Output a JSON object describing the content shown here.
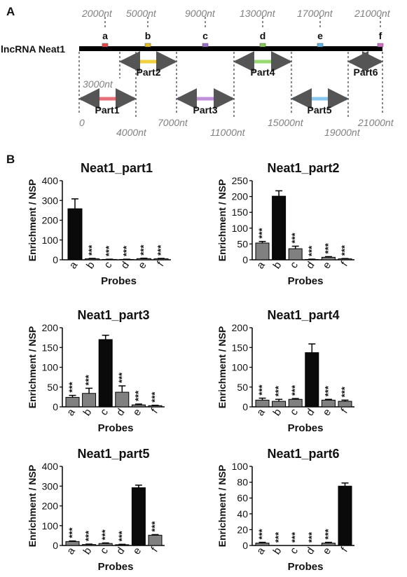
{
  "panels": {
    "a": "A",
    "b": "B"
  },
  "map": {
    "gene_label": "lncRNA Neat1",
    "probes": [
      {
        "letter": "a",
        "color": "#e84a4a"
      },
      {
        "letter": "b",
        "color": "#e8c020"
      },
      {
        "letter": "c",
        "color": "#a070c8"
      },
      {
        "letter": "d",
        "color": "#88cc55"
      },
      {
        "letter": "e",
        "color": "#60b8e8"
      },
      {
        "letter": "f",
        "color": "#d070c8"
      }
    ],
    "top_positions": [
      "2000nt",
      "5000nt",
      "9000nt",
      "13000nt",
      "17000nt",
      "21000nt"
    ],
    "parts": [
      {
        "name": "Part1",
        "color": "#e8707a"
      },
      {
        "name": "Part2",
        "color": "#f0d040"
      },
      {
        "name": "Part3",
        "color": "#c090d8"
      },
      {
        "name": "Part4",
        "color": "#98d870"
      },
      {
        "name": "Part5",
        "color": "#88c8f0"
      },
      {
        "name": "Part6",
        "color": "#e090d8"
      }
    ],
    "boundary_labels": {
      "p3000": "3000nt",
      "p0": "0",
      "p4000": "4000nt",
      "p7000": "7000nt",
      "p11000": "11000nt",
      "p15000": "15000nt",
      "p19000": "19000nt",
      "p21000": "21000nt"
    }
  },
  "chart_data": [
    {
      "type": "bar",
      "title": "Neat1_part1",
      "ylabel": "Enrichment / NSP",
      "xlabel": "Probes",
      "categories": [
        "a",
        "b",
        "c",
        "d",
        "e",
        "f"
      ],
      "ylim": [
        0,
        400
      ],
      "yticks": [
        0,
        100,
        200,
        300,
        400
      ],
      "values": [
        258,
        5,
        2,
        2,
        6,
        5
      ],
      "errors": [
        50,
        2,
        1,
        1,
        2,
        2
      ],
      "bar_colors": [
        "black",
        "gray",
        "gray",
        "gray",
        "gray",
        "gray"
      ],
      "annotations": [
        "",
        "***",
        "***",
        "***",
        "***",
        "***"
      ]
    },
    {
      "type": "bar",
      "title": "Neat1_part2",
      "ylabel": "Enrichment / NSP",
      "xlabel": "Probes",
      "categories": [
        "a",
        "b",
        "c",
        "d",
        "e",
        "f"
      ],
      "ylim": [
        0,
        250
      ],
      "yticks": [
        0,
        50,
        100,
        150,
        200,
        250
      ],
      "values": [
        53,
        201,
        35,
        1,
        8,
        3
      ],
      "errors": [
        5,
        17,
        8,
        1,
        2,
        1
      ],
      "bar_colors": [
        "gray",
        "black",
        "gray",
        "gray",
        "gray",
        "gray"
      ],
      "annotations": [
        "***",
        "",
        "***",
        "***",
        "***",
        "***"
      ]
    },
    {
      "type": "bar",
      "title": "Neat1_part3",
      "ylabel": "Enrichment / NSP",
      "xlabel": "Probes",
      "categories": [
        "a",
        "b",
        "c",
        "d",
        "e",
        "f"
      ],
      "ylim": [
        0,
        200
      ],
      "yticks": [
        0,
        50,
        100,
        150,
        200
      ],
      "values": [
        24,
        34,
        170,
        37,
        5,
        3
      ],
      "errors": [
        5,
        13,
        11,
        16,
        2,
        1
      ],
      "bar_colors": [
        "gray",
        "gray",
        "black",
        "gray",
        "gray",
        "gray"
      ],
      "annotations": [
        "***",
        "***",
        "",
        "***",
        "***",
        "***"
      ]
    },
    {
      "type": "bar",
      "title": "Neat1_part4",
      "ylabel": "Enrichment / NSP",
      "xlabel": "Probes",
      "categories": [
        "a",
        "b",
        "c",
        "d",
        "e",
        "f"
      ],
      "ylim": [
        0,
        200
      ],
      "yticks": [
        0,
        50,
        100,
        150,
        200
      ],
      "values": [
        17,
        14,
        19,
        137,
        17,
        14
      ],
      "errors": [
        5,
        5,
        2,
        22,
        2,
        3
      ],
      "bar_colors": [
        "gray",
        "gray",
        "gray",
        "black",
        "gray",
        "gray"
      ],
      "annotations": [
        "***",
        "***",
        "***",
        "",
        "***",
        "***"
      ]
    },
    {
      "type": "bar",
      "title": "Neat1_part5",
      "ylabel": "Enrichment / NSP",
      "xlabel": "Probes",
      "categories": [
        "a",
        "b",
        "c",
        "d",
        "e",
        "f"
      ],
      "ylim": [
        0,
        400
      ],
      "yticks": [
        0,
        100,
        200,
        300,
        400
      ],
      "values": [
        20,
        5,
        10,
        4,
        292,
        52
      ],
      "errors": [
        3,
        2,
        3,
        2,
        13,
        3
      ],
      "bar_colors": [
        "gray",
        "gray",
        "gray",
        "gray",
        "black",
        "gray"
      ],
      "annotations": [
        "***",
        "***",
        "***",
        "***",
        "",
        "***"
      ]
    },
    {
      "type": "bar",
      "title": "Neat1_part6",
      "ylabel": "Enrichment / NSP",
      "xlabel": "Probes",
      "categories": [
        "a",
        "b",
        "c",
        "d",
        "e",
        "f"
      ],
      "ylim": [
        0,
        100
      ],
      "yticks": [
        0,
        20,
        40,
        60,
        80,
        100
      ],
      "values": [
        3,
        0,
        0,
        0,
        3,
        75
      ],
      "errors": [
        1,
        0,
        0,
        0,
        1,
        4
      ],
      "bar_colors": [
        "gray",
        "gray",
        "gray",
        "gray",
        "gray",
        "black"
      ],
      "annotations": [
        "***",
        "***",
        "***",
        "***",
        "***",
        ""
      ]
    }
  ]
}
